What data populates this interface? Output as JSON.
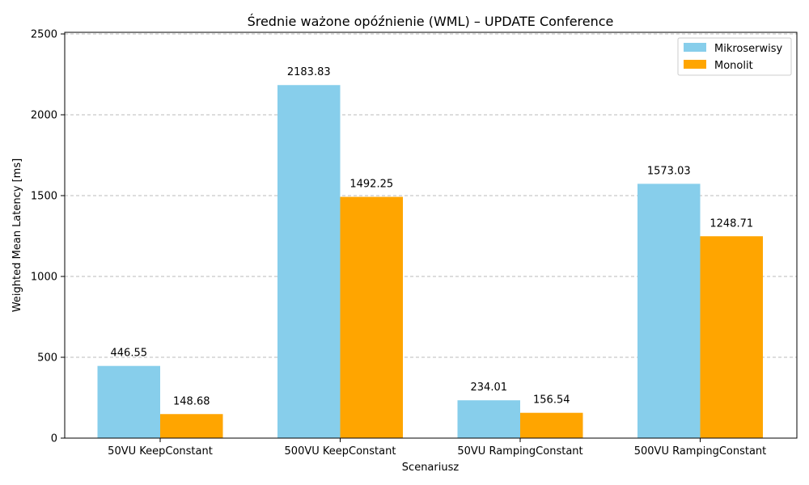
{
  "chart_data": {
    "type": "bar",
    "title": "Średnie ważone opóźnienie (WML) – UPDATE Conference",
    "xlabel": "Scenariusz",
    "ylabel": "Weighted Mean Latency [ms]",
    "categories": [
      "50VU KeepConstant",
      "500VU KeepConstant",
      "50VU RampingConstant",
      "500VU RampingConstant"
    ],
    "series": [
      {
        "name": "Mikroserwisy",
        "values": [
          446.55,
          2183.83,
          234.01,
          1573.03
        ],
        "color": "#87ceeb"
      },
      {
        "name": "Monolit",
        "values": [
          148.68,
          1492.25,
          156.54,
          1248.71
        ],
        "color": "#ffa500"
      }
    ],
    "ylim": [
      0,
      2500
    ],
    "yticks": [
      0,
      500,
      1000,
      1500,
      2000,
      2500
    ],
    "grid": "y-dashed",
    "legend_position": "top-right"
  }
}
